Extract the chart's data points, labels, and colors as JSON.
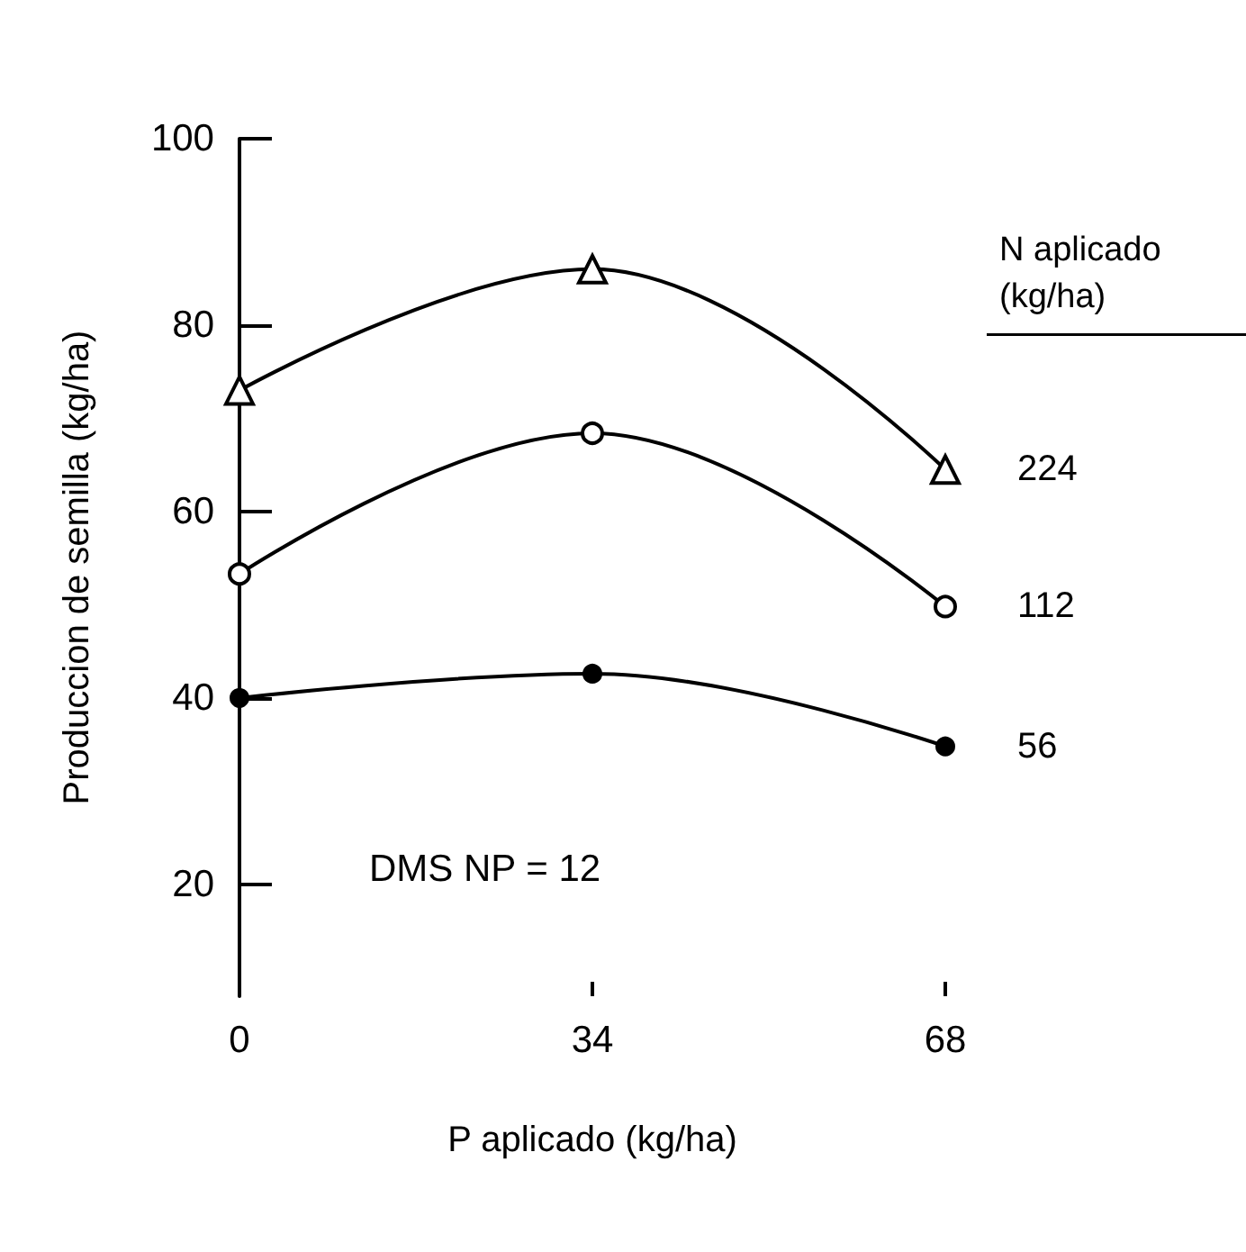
{
  "chart_data": {
    "type": "line",
    "xlabel": "P aplicado (kg/ha)",
    "ylabel": "Produccion de semilla (kg/ha)",
    "legend_title": "N aplicado (kg/ha)",
    "x": [
      0,
      34,
      68
    ],
    "xlim": [
      0,
      68
    ],
    "xticks": [
      0,
      34,
      68
    ],
    "ylim": [
      8,
      100
    ],
    "yticks": [
      20,
      40,
      60,
      80,
      100
    ],
    "series": [
      {
        "name": "224",
        "color": "#000000",
        "marker": "triangle",
        "values": [
          73,
          86,
          64.5
        ]
      },
      {
        "name": "112",
        "color": "#000000",
        "marker": "circle",
        "values": [
          53.3,
          68.4,
          49.8
        ]
      },
      {
        "name": "56",
        "color": "#000000",
        "marker": "circle",
        "values": [
          40,
          42.6,
          34.8
        ]
      }
    ],
    "annotations": [
      "DMS NP = 12"
    ],
    "grid": false,
    "legend": "right",
    "line_style": "solid"
  }
}
